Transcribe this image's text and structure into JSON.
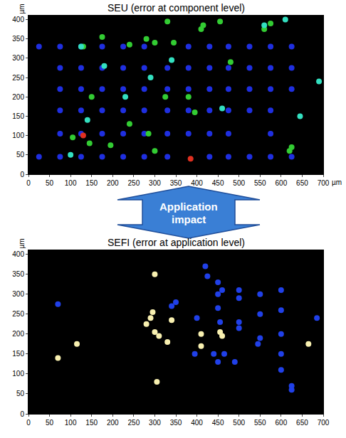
{
  "chart_data": [
    {
      "type": "scatter",
      "title": "SEU (error at component level)",
      "xlabel": "µm",
      "ylabel": "µm",
      "xlim": [
        0,
        700
      ],
      "ylim": [
        0,
        410
      ],
      "xticks": [
        0,
        50,
        100,
        150,
        200,
        250,
        300,
        350,
        400,
        450,
        500,
        550,
        600,
        650,
        700
      ],
      "yticks": [
        0,
        50,
        100,
        150,
        200,
        250,
        300,
        350,
        400
      ],
      "grid": false,
      "marker": "circle",
      "series": [
        {
          "color": "#1f2fe0",
          "x": [
            25,
            25,
            75,
            75,
            75,
            75,
            75,
            75,
            125,
            125,
            125,
            125,
            125,
            125,
            175,
            175,
            175,
            175,
            175,
            175,
            225,
            225,
            225,
            225,
            225,
            225,
            275,
            275,
            275,
            275,
            275,
            275,
            330,
            330,
            330,
            330,
            330,
            380,
            380,
            380,
            380,
            380,
            430,
            430,
            430,
            430,
            430,
            430,
            475,
            475,
            475,
            475,
            475,
            475,
            525,
            525,
            525,
            525,
            525,
            575,
            575,
            575,
            575,
            575,
            575,
            625,
            625,
            625,
            625
          ],
          "y": [
            45,
            330,
            45,
            105,
            165,
            220,
            275,
            330,
            45,
            105,
            165,
            220,
            275,
            330,
            45,
            105,
            165,
            220,
            275,
            330,
            45,
            105,
            165,
            220,
            275,
            330,
            45,
            105,
            165,
            220,
            275,
            330,
            45,
            105,
            165,
            220,
            275,
            105,
            165,
            220,
            275,
            330,
            45,
            105,
            165,
            220,
            275,
            330,
            45,
            105,
            165,
            220,
            275,
            330,
            45,
            165,
            220,
            275,
            330,
            45,
            105,
            165,
            220,
            275,
            330,
            45,
            220,
            275,
            330
          ]
        },
        {
          "color": "#33cc33",
          "x": [
            130,
            175,
            240,
            280,
            300,
            330,
            345,
            410,
            415,
            455,
            560,
            575,
            620,
            625,
            145,
            195,
            240,
            285,
            325,
            150,
            480,
            395,
            300,
            380,
            105
          ],
          "y": [
            330,
            355,
            335,
            350,
            340,
            395,
            340,
            375,
            385,
            395,
            375,
            390,
            60,
            70,
            80,
            75,
            130,
            105,
            200,
            200,
            290,
            160,
            60,
            200,
            95
          ]
        },
        {
          "color": "#33e0c0",
          "x": [
            125,
            180,
            230,
            290,
            340,
            460,
            610,
            690,
            645,
            560,
            140,
            100
          ],
          "y": [
            330,
            280,
            200,
            250,
            295,
            170,
            400,
            240,
            150,
            385,
            140,
            50
          ]
        },
        {
          "color": "#e03020",
          "x": [
            385,
            130
          ],
          "y": [
            40,
            100
          ]
        }
      ]
    },
    {
      "type": "scatter",
      "title": "SEFI (error at application level)",
      "ylabel": "µm",
      "xlim": [
        0,
        700
      ],
      "ylim": [
        0,
        410
      ],
      "xticks": [
        0,
        50,
        100,
        150,
        200,
        250,
        300,
        350,
        400,
        450,
        500,
        550,
        600,
        650,
        700
      ],
      "yticks": [
        0,
        50,
        100,
        150,
        200,
        250,
        300,
        350,
        400
      ],
      "grid": false,
      "marker": "circle",
      "series": [
        {
          "color": "#f8f0b0",
          "x": [
            70,
            115,
            300,
            295,
            290,
            300,
            310,
            330,
            305,
            410,
            410,
            455,
            460,
            665,
            340,
            280
          ],
          "y": [
            140,
            175,
            350,
            255,
            240,
            205,
            195,
            180,
            80,
            200,
            170,
            205,
            195,
            175,
            235,
            225
          ]
        },
        {
          "color": "#2040e8",
          "x": [
            70,
            340,
            350,
            420,
            425,
            450,
            450,
            460,
            500,
            500,
            450,
            455,
            500,
            500,
            550,
            550,
            550,
            545,
            600,
            600,
            600,
            600,
            600,
            625,
            625,
            490,
            450,
            440,
            465,
            685,
            400,
            395
          ],
          "y": [
            275,
            270,
            280,
            370,
            345,
            330,
            300,
            310,
            310,
            290,
            265,
            230,
            230,
            215,
            300,
            250,
            190,
            175,
            310,
            260,
            200,
            150,
            110,
            70,
            60,
            130,
            130,
            150,
            150,
            240,
            240,
            150
          ]
        }
      ]
    }
  ],
  "arrow_text": [
    "Application",
    "impact"
  ]
}
